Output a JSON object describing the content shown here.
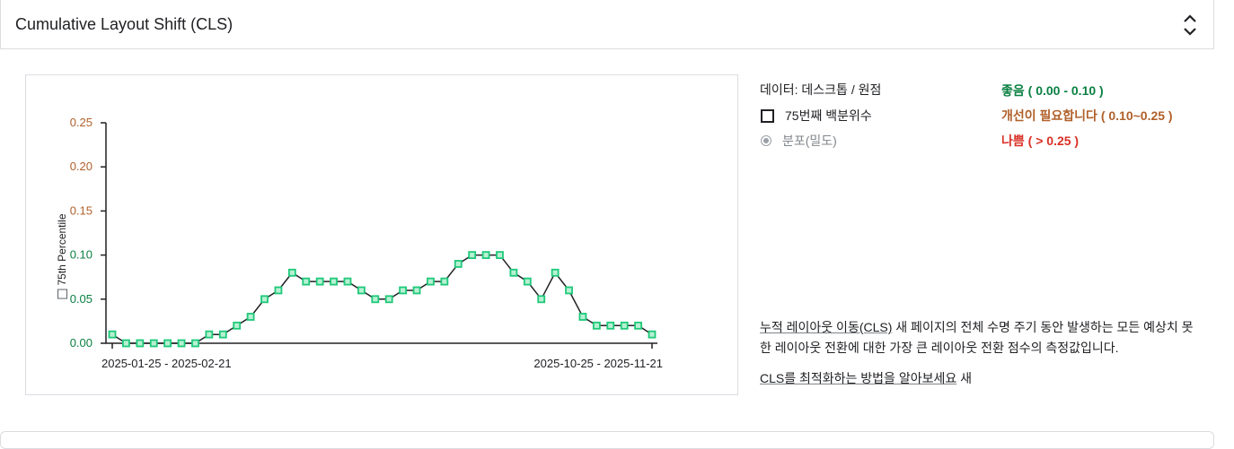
{
  "header": {
    "title": "Cumulative Layout Shift (CLS)"
  },
  "legend": {
    "data_label": "데이터: 데스크톱 / 원점",
    "p75_label": "75번째 백분위수",
    "distribution_label": "분포(밀도)"
  },
  "thresholds": {
    "good": "좋음 ( 0.00 - 0.10 )",
    "needs_improvement": "개선이 필요합니다 ( 0.10~0.25 )",
    "poor": "나쁨 ( > 0.25 )"
  },
  "description": {
    "link_text": "누적 레이아웃 이동(CLS)",
    "link_suffix": " 새",
    "body": " 페이지의 전체 수명 주기 동안 발생하는 모든 예상치 못한 레이아웃 전환에 대한 가장 큰 레이아웃 전환 점수의 측정값입니다."
  },
  "learn_more": {
    "link_text": "CLS를 최적화하는 방법을 알아보세요",
    "suffix": " 새"
  },
  "colors": {
    "good": "#0b8043",
    "needs_improvement": "#b0602a",
    "poor": "#d93025",
    "marker": "#1ec97a",
    "marker_fill": "#b7f0d2"
  },
  "chart_data": {
    "type": "line",
    "ylabel": "75th Percentile",
    "yticks": [
      "0.25",
      "0.20",
      "0.15",
      "0.10",
      "0.05",
      "0.00"
    ],
    "ylim": [
      0,
      0.25
    ],
    "x_first_label": "2025-01-25 - 2025-02-21",
    "x_last_label": "2025-10-25 - 2025-11-21",
    "values": [
      0.01,
      0.0,
      0.0,
      0.0,
      0.0,
      0.0,
      0.0,
      0.01,
      0.01,
      0.02,
      0.03,
      0.05,
      0.06,
      0.08,
      0.07,
      0.07,
      0.07,
      0.07,
      0.06,
      0.05,
      0.05,
      0.06,
      0.06,
      0.07,
      0.07,
      0.09,
      0.1,
      0.1,
      0.1,
      0.08,
      0.07,
      0.05,
      0.08,
      0.06,
      0.03,
      0.02,
      0.02,
      0.02,
      0.02,
      0.01
    ]
  }
}
